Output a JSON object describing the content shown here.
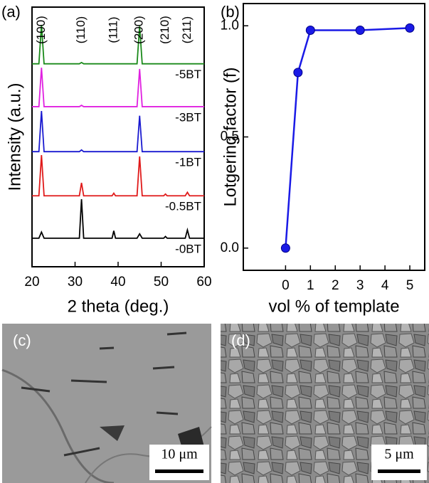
{
  "chart_data": [
    {
      "type": "line",
      "panel": "(a)",
      "xlabel": "2 theta (deg.)",
      "ylabel": "Intensity (a.u.)",
      "xlim": [
        20,
        60
      ],
      "xticks": [
        20,
        30,
        40,
        50,
        60
      ],
      "ylim": [
        0,
        6
      ],
      "x": [
        20,
        21.6,
        22.2,
        22.8,
        31.0,
        31.5,
        32.0,
        38.6,
        39.0,
        39.4,
        44.4,
        45.0,
        45.6,
        50.6,
        51.0,
        51.4,
        55.6,
        56.1,
        56.6,
        60
      ],
      "series": [
        {
          "name": "-5BT",
          "color": "#1a8a1a",
          "values": [
            4.69,
            4.69,
            5.59,
            4.69,
            4.69,
            4.72,
            4.69,
            4.69,
            4.69,
            4.69,
            4.69,
            5.56,
            4.69,
            4.69,
            4.69,
            4.69,
            4.69,
            4.69,
            4.69,
            4.69
          ]
        },
        {
          "name": "-3BT",
          "color": "#e020e0",
          "values": [
            3.7,
            3.7,
            4.6,
            3.7,
            3.7,
            3.73,
            3.7,
            3.7,
            3.7,
            3.7,
            3.7,
            4.57,
            3.7,
            3.7,
            3.7,
            3.7,
            3.7,
            3.7,
            3.7,
            3.7
          ]
        },
        {
          "name": "-1BT",
          "color": "#1a1ad0",
          "values": [
            2.66,
            2.66,
            3.6,
            2.66,
            2.66,
            2.7,
            2.66,
            2.66,
            2.66,
            2.66,
            2.66,
            3.49,
            2.66,
            2.66,
            2.66,
            2.66,
            2.66,
            2.66,
            2.66,
            2.66
          ]
        },
        {
          "name": "-0.5BT",
          "color": "#e01a1a",
          "values": [
            1.64,
            1.64,
            2.58,
            1.64,
            1.64,
            1.94,
            1.64,
            1.64,
            1.7,
            1.64,
            1.64,
            2.55,
            1.64,
            1.64,
            1.68,
            1.64,
            1.64,
            1.72,
            1.64,
            1.64
          ]
        },
        {
          "name": "-0BT",
          "color": "#000000",
          "values": [
            0.66,
            0.66,
            0.8,
            0.66,
            0.66,
            1.56,
            0.66,
            0.66,
            0.83,
            0.66,
            0.66,
            0.76,
            0.66,
            0.66,
            0.7,
            0.66,
            0.66,
            0.85,
            0.66,
            0.66
          ]
        }
      ],
      "annotations": [
        {
          "text": "(100)",
          "x": 22.2
        },
        {
          "text": "(110)",
          "x": 31.5
        },
        {
          "text": "(111)",
          "x": 39.0
        },
        {
          "text": "(200)",
          "x": 45.0
        },
        {
          "text": "(210)",
          "x": 51.0
        },
        {
          "text": "(211)",
          "x": 56.1
        }
      ]
    },
    {
      "type": "line",
      "panel": "(b)",
      "xlabel": "vol % of template",
      "ylabel": "Lotgering factor (f)",
      "xlim": [
        -1.7,
        5.6
      ],
      "xticks": [
        0,
        1,
        2,
        3,
        4,
        5
      ],
      "ylim": [
        -0.1,
        1.1
      ],
      "yticks": [
        {
          "value": 0,
          "label": "0.0"
        },
        {
          "value": 0.5,
          "label": "0.5"
        },
        {
          "value": 1,
          "label": "1.0"
        }
      ],
      "markers": true,
      "x": [
        0,
        0.5,
        1,
        3,
        5
      ],
      "series": [
        {
          "color": "#1a1ae6",
          "values": [
            0,
            0.79,
            0.98,
            0.98,
            0.99
          ]
        }
      ]
    }
  ],
  "images": [
    {
      "label": "(c)",
      "scale_bar": "10 μm"
    },
    {
      "label": "(d)",
      "scale_bar": "5 μm"
    }
  ]
}
